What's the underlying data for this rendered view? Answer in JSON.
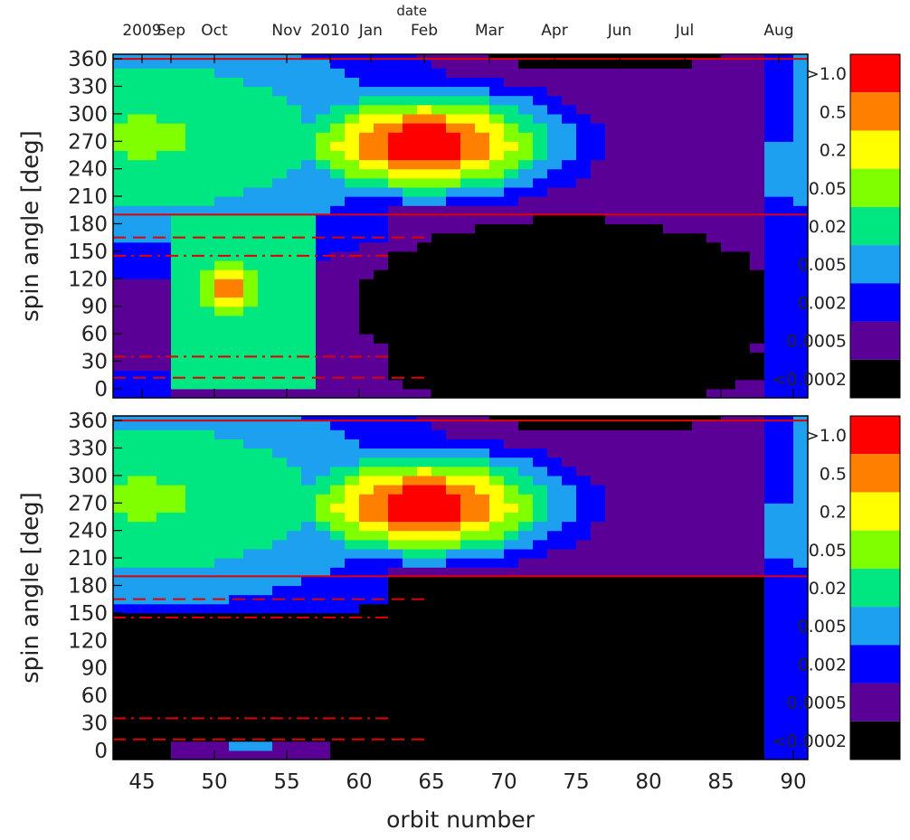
{
  "chart_data": {
    "type": "heatmap",
    "top_axis_title": "date",
    "date_ticks": [
      {
        "label": "2009",
        "orbit": 45.0
      },
      {
        "label": "Sep",
        "orbit": 47.0
      },
      {
        "label": "Oct",
        "orbit": 50.0
      },
      {
        "label": "Nov",
        "orbit": 55.0
      },
      {
        "label": "2010",
        "orbit": 58.0
      },
      {
        "label": "Jan",
        "orbit": 60.8
      },
      {
        "label": "Feb",
        "orbit": 64.5
      },
      {
        "label": "Mar",
        "orbit": 69.0
      },
      {
        "label": "Apr",
        "orbit": 73.5
      },
      {
        "label": "Jun",
        "orbit": 78.0
      },
      {
        "label": "Jul",
        "orbit": 82.5
      },
      {
        "label": "Aug",
        "orbit": 89.0
      }
    ],
    "xlabel": "orbit number",
    "ylabel": "spin angle [deg]",
    "xlim": [
      43,
      91
    ],
    "ylim": [
      -10,
      365
    ],
    "x_ticks": [
      45,
      50,
      55,
      60,
      65,
      70,
      75,
      80,
      85,
      90
    ],
    "y_ticks": [
      0,
      30,
      60,
      90,
      120,
      150,
      180,
      210,
      240,
      270,
      300,
      330,
      360
    ],
    "colorbar": {
      "labels": [
        ">1.0",
        "0.5",
        "0.2",
        "0.05",
        "0.02",
        "0.005",
        "0.002",
        "0.0005",
        "<0.0002"
      ],
      "colors": [
        "#ff0000",
        "#ff7f00",
        "#ffff00",
        "#80ff00",
        "#00e680",
        "#1ea0f0",
        "#0000ff",
        "#5a0096",
        "#000000"
      ]
    },
    "panels": [
      {
        "id": "top",
        "reference_lines": [
          {
            "style": "solid",
            "y": 360,
            "x_range": [
              43,
              91
            ]
          },
          {
            "style": "solid",
            "y": 190,
            "x_range": [
              43,
              91
            ]
          },
          {
            "style": "dash",
            "y": 165,
            "x_range": [
              43,
              65
            ]
          },
          {
            "style": "dashdot",
            "y": 145,
            "x_range": [
              43,
              62
            ]
          },
          {
            "style": "dashdot",
            "y": 35,
            "x_range": [
              43,
              62
            ]
          },
          {
            "style": "dash",
            "y": 12,
            "x_range": [
              43,
              65
            ]
          }
        ]
      },
      {
        "id": "bottom",
        "reference_lines": [
          {
            "style": "solid",
            "y": 360,
            "x_range": [
              43,
              91
            ]
          },
          {
            "style": "solid",
            "y": 190,
            "x_range": [
              43,
              91
            ]
          },
          {
            "style": "dash",
            "y": 165,
            "x_range": [
              43,
              65
            ]
          },
          {
            "style": "dashdot",
            "y": 145,
            "x_range": [
              43,
              62
            ]
          },
          {
            "style": "dashdot",
            "y": 35,
            "x_range": [
              43,
              62
            ]
          },
          {
            "style": "dash",
            "y": 12,
            "x_range": [
              43,
              65
            ]
          }
        ]
      }
    ]
  }
}
